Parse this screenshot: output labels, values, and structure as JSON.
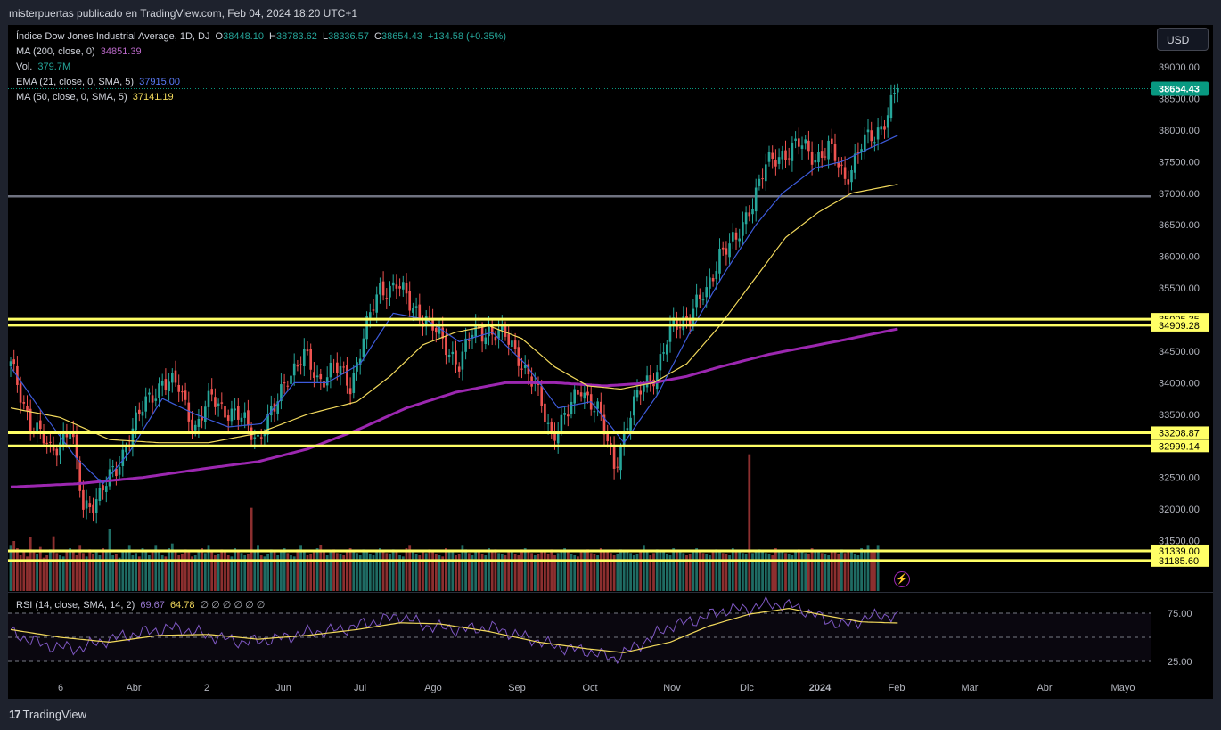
{
  "header": {
    "publisher": "misterpuertas publicado en TradingView.com, Feb 04, 2024 18:20 UTC+1"
  },
  "legend": {
    "symbol": "Índice Dow Jones Industrial Average, 1D, DJ",
    "open_label": "O",
    "open": "38448.10",
    "high_label": "H",
    "high": "38783.62",
    "low_label": "L",
    "low": "38336.57",
    "close_label": "C",
    "close": "38654.43",
    "change": "+134.58 (+0.35%)",
    "ma200_label": "MA (200, close, 0)",
    "ma200_value": "34851.39",
    "vol_label": "Vol.",
    "vol_value": "379.7M",
    "ema21_label": "EMA (21, close, 0, SMA, 5)",
    "ema21_value": "37915.00",
    "ma50_label": "MA (50, close, 0, SMA, 5)",
    "ma50_value": "37141.19",
    "rsi_label": "RSI (14, close, SMA, 14, 2)",
    "rsi_value": "69.67",
    "rsi_ma_value": "64.78",
    "rsi_extra": "∅ ∅ ∅ ∅ ∅ ∅"
  },
  "currency_button": "USD",
  "footer": {
    "brand": "TradingView",
    "logo_mark": "17"
  },
  "colors": {
    "up": "#26a69a",
    "down": "#ef5350",
    "vol_up": "#1f6b63",
    "vol_down": "#8c2f2f",
    "ma200": "#9c27b0",
    "ema21": "#3d5bdb",
    "ma50": "#f2d95c",
    "rsi": "#7e57c2",
    "rsi_ma": "#f2d95c",
    "level": "#ffff66",
    "grey_level": "#6f7280",
    "last_price_bg": "#089981"
  },
  "chart_data": {
    "type": "candlestick",
    "title": "Índice Dow Jones Industrial Average, 1D, DJ",
    "y_range": [
      31000,
      39500
    ],
    "y_ticks": [
      "31500.00",
      "32000.00",
      "32500.00",
      "33500.00",
      "34000.00",
      "34500.00",
      "35500.00",
      "36000.00",
      "36500.00",
      "37000.00",
      "37500.00",
      "38000.00",
      "38500.00",
      "39000.00"
    ],
    "x_labels": [
      "6",
      "Abr",
      "2",
      "Jun",
      "Jul",
      "Ago",
      "Sep",
      "Oct",
      "Nov",
      "Dic",
      "2024",
      "Feb",
      "Mar",
      "Abr",
      "Mayo"
    ],
    "last_price": "38654.43",
    "levels": [
      {
        "label": "35005.35",
        "value": 35005.35
      },
      {
        "label": "34909.28",
        "value": 34909.28
      },
      {
        "label": "33208.87",
        "value": 33208.87
      },
      {
        "label": "32999.14",
        "value": 32999.14
      },
      {
        "label": "31339.00",
        "value": 31339.0
      },
      {
        "label": "31185.60",
        "value": 31185.6
      }
    ],
    "grey_level": 36950,
    "close_path": [
      [
        0,
        34250
      ],
      [
        6,
        33400
      ],
      [
        12,
        32900
      ],
      [
        18,
        33300
      ],
      [
        22,
        32000
      ],
      [
        27,
        32250
      ],
      [
        32,
        32600
      ],
      [
        36,
        33200
      ],
      [
        41,
        33650
      ],
      [
        46,
        34050
      ],
      [
        51,
        33900
      ],
      [
        56,
        33300
      ],
      [
        61,
        33750
      ],
      [
        65,
        33600
      ],
      [
        70,
        33400
      ],
      [
        75,
        33150
      ],
      [
        80,
        33550
      ],
      [
        84,
        34150
      ],
      [
        89,
        34400
      ],
      [
        93,
        34050
      ],
      [
        98,
        34250
      ],
      [
        103,
        33950
      ],
      [
        107,
        34750
      ],
      [
        112,
        35450
      ],
      [
        117,
        35600
      ],
      [
        121,
        35200
      ],
      [
        126,
        35050
      ],
      [
        131,
        34600
      ],
      [
        136,
        34350
      ],
      [
        140,
        34750
      ],
      [
        145,
        34850
      ],
      [
        150,
        34700
      ],
      [
        154,
        34450
      ],
      [
        159,
        33900
      ],
      [
        164,
        33200
      ],
      [
        169,
        33500
      ],
      [
        173,
        33950
      ],
      [
        178,
        33550
      ],
      [
        183,
        32700
      ],
      [
        187,
        33350
      ],
      [
        192,
        34000
      ],
      [
        196,
        34200
      ],
      [
        201,
        34900
      ],
      [
        206,
        35100
      ],
      [
        211,
        35400
      ],
      [
        215,
        36100
      ],
      [
        220,
        36200
      ],
      [
        224,
        36800
      ],
      [
        229,
        37400
      ],
      [
        234,
        37650
      ],
      [
        239,
        37750
      ],
      [
        244,
        37600
      ],
      [
        248,
        37700
      ],
      [
        253,
        37250
      ],
      [
        258,
        37750
      ],
      [
        262,
        37900
      ],
      [
        266,
        38300
      ],
      [
        269,
        38654.43
      ]
    ],
    "ema21": [
      [
        0,
        34250
      ],
      [
        10,
        33500
      ],
      [
        20,
        32800
      ],
      [
        28,
        32400
      ],
      [
        36,
        32900
      ],
      [
        46,
        33750
      ],
      [
        56,
        33500
      ],
      [
        66,
        33300
      ],
      [
        76,
        33350
      ],
      [
        86,
        34000
      ],
      [
        96,
        34000
      ],
      [
        106,
        34300
      ],
      [
        116,
        35100
      ],
      [
        126,
        35000
      ],
      [
        136,
        34650
      ],
      [
        146,
        34800
      ],
      [
        156,
        34300
      ],
      [
        166,
        33600
      ],
      [
        176,
        33700
      ],
      [
        186,
        33050
      ],
      [
        196,
        33800
      ],
      [
        206,
        34800
      ],
      [
        216,
        35700
      ],
      [
        226,
        36500
      ],
      [
        234,
        37000
      ],
      [
        244,
        37400
      ],
      [
        252,
        37500
      ],
      [
        260,
        37700
      ],
      [
        269,
        37915
      ]
    ],
    "ma50": [
      [
        0,
        33600
      ],
      [
        15,
        33450
      ],
      [
        30,
        33100
      ],
      [
        45,
        33050
      ],
      [
        60,
        33050
      ],
      [
        75,
        33200
      ],
      [
        90,
        33500
      ],
      [
        105,
        33700
      ],
      [
        115,
        34100
      ],
      [
        125,
        34600
      ],
      [
        135,
        34800
      ],
      [
        145,
        34900
      ],
      [
        155,
        34700
      ],
      [
        165,
        34250
      ],
      [
        175,
        33950
      ],
      [
        185,
        33900
      ],
      [
        195,
        34000
      ],
      [
        205,
        34300
      ],
      [
        215,
        34900
      ],
      [
        225,
        35600
      ],
      [
        235,
        36300
      ],
      [
        245,
        36700
      ],
      [
        255,
        37000
      ],
      [
        269,
        37141.19
      ]
    ],
    "ma200": [
      [
        0,
        32350
      ],
      [
        20,
        32400
      ],
      [
        40,
        32500
      ],
      [
        60,
        32650
      ],
      [
        75,
        32750
      ],
      [
        90,
        32950
      ],
      [
        105,
        33250
      ],
      [
        120,
        33600
      ],
      [
        135,
        33850
      ],
      [
        150,
        34000
      ],
      [
        165,
        34000
      ],
      [
        180,
        33950
      ],
      [
        195,
        34000
      ],
      [
        205,
        34100
      ],
      [
        215,
        34250
      ],
      [
        230,
        34450
      ],
      [
        250,
        34650
      ],
      [
        269,
        34851.39
      ]
    ],
    "volume_millions": [
      380,
      420,
      360,
      300,
      340,
      290,
      450,
      330,
      310,
      370,
      280,
      300,
      350,
      460,
      320,
      300,
      290,
      340,
      360,
      330,
      300,
      380,
      320,
      290,
      350,
      310,
      330,
      300,
      360,
      340,
      520,
      300,
      310,
      280,
      330,
      350,
      380,
      300,
      320,
      290,
      360,
      340,
      300,
      330,
      380,
      340,
      300,
      290,
      360,
      400,
      330,
      300,
      310,
      350,
      340,
      290,
      300,
      330,
      360,
      320,
      380,
      340,
      300,
      310,
      350,
      330,
      300,
      290,
      360,
      340,
      320,
      300,
      310,
      700,
      330,
      380,
      300,
      290,
      310,
      350,
      340,
      300,
      330,
      360,
      320,
      300,
      290,
      350,
      380,
      330,
      300,
      310,
      340,
      360,
      390,
      340,
      300,
      330,
      350,
      320,
      310,
      300,
      330,
      360,
      340,
      320,
      300,
      350,
      330,
      310,
      300,
      340,
      360,
      330,
      320,
      310,
      350,
      340,
      300,
      290,
      360,
      380,
      330,
      310,
      300,
      340,
      320,
      350,
      330,
      310,
      300,
      290,
      360,
      340,
      330,
      300,
      310,
      380,
      350,
      320,
      300,
      330,
      340,
      310,
      300,
      360,
      330,
      350,
      320,
      310,
      300,
      340,
      330,
      310,
      300,
      350,
      360,
      330,
      320,
      300,
      310,
      340,
      330,
      310,
      350,
      300,
      320,
      340,
      360,
      330,
      310,
      300,
      290,
      340,
      330,
      350,
      320,
      310,
      300,
      360,
      330,
      340,
      320,
      300,
      310,
      350,
      340,
      330,
      320,
      300,
      310,
      340,
      380,
      330,
      300,
      320,
      350,
      340,
      330,
      310,
      300,
      360,
      340,
      330,
      320,
      300,
      310,
      340,
      360,
      330,
      320,
      310,
      300,
      340,
      350,
      330,
      320,
      310,
      300,
      360,
      340,
      330,
      320,
      310,
      1150,
      320,
      330,
      350,
      340,
      320,
      310,
      300,
      360,
      340,
      330,
      320,
      310,
      300,
      340,
      350,
      330,
      320,
      310,
      360,
      340,
      330,
      320,
      310,
      300,
      340,
      330,
      310,
      350,
      320,
      340,
      330,
      310,
      300,
      360,
      340,
      380,
      330,
      350,
      379.7
    ],
    "rsi_levels": [
      75,
      50,
      25
    ],
    "rsi_tick_labels": [
      "75.00",
      "25.00"
    ],
    "rsi_path": [
      [
        0,
        55
      ],
      [
        10,
        42
      ],
      [
        20,
        38
      ],
      [
        30,
        48
      ],
      [
        40,
        55
      ],
      [
        50,
        60
      ],
      [
        60,
        52
      ],
      [
        70,
        45
      ],
      [
        80,
        48
      ],
      [
        90,
        55
      ],
      [
        100,
        58
      ],
      [
        110,
        66
      ],
      [
        118,
        72
      ],
      [
        126,
        62
      ],
      [
        136,
        58
      ],
      [
        146,
        60
      ],
      [
        156,
        50
      ],
      [
        166,
        40
      ],
      [
        176,
        35
      ],
      [
        183,
        28
      ],
      [
        192,
        45
      ],
      [
        200,
        62
      ],
      [
        208,
        68
      ],
      [
        216,
        78
      ],
      [
        224,
        80
      ],
      [
        230,
        85
      ],
      [
        238,
        82
      ],
      [
        246,
        70
      ],
      [
        252,
        62
      ],
      [
        258,
        68
      ],
      [
        264,
        74
      ],
      [
        269,
        69.67
      ]
    ],
    "rsi_ma_path": [
      [
        0,
        58
      ],
      [
        15,
        50
      ],
      [
        30,
        45
      ],
      [
        45,
        52
      ],
      [
        60,
        53
      ],
      [
        75,
        48
      ],
      [
        90,
        52
      ],
      [
        105,
        58
      ],
      [
        118,
        65
      ],
      [
        130,
        64
      ],
      [
        145,
        56
      ],
      [
        160,
        45
      ],
      [
        175,
        38
      ],
      [
        186,
        34
      ],
      [
        200,
        45
      ],
      [
        212,
        62
      ],
      [
        224,
        74
      ],
      [
        236,
        80
      ],
      [
        248,
        72
      ],
      [
        258,
        66
      ],
      [
        269,
        64.78
      ]
    ]
  }
}
